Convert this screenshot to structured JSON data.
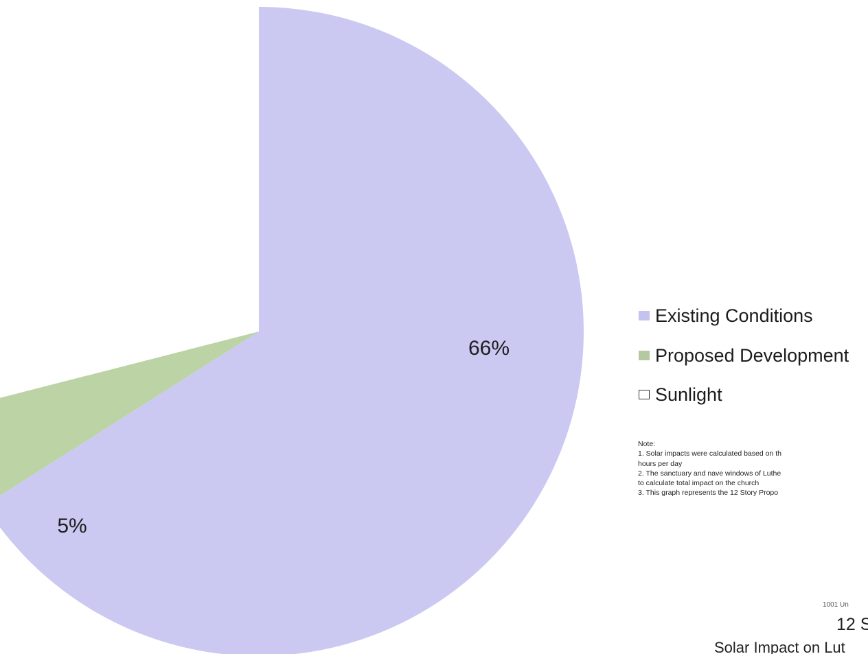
{
  "chart_data": {
    "type": "pie",
    "slices": [
      {
        "name": "Existing Conditions",
        "value": 66,
        "label": "66%",
        "color": "#cbc9f2"
      },
      {
        "name": "Proposed Development",
        "value": 5,
        "label": "5%",
        "color": "#bcd3a6"
      },
      {
        "name": "Sunlight",
        "value": 29,
        "label": "",
        "color": "#ffffff"
      }
    ],
    "legend_position": "right"
  },
  "legend": {
    "items": [
      {
        "label": "Existing Conditions",
        "color": "#c4c3ef"
      },
      {
        "label": "Proposed Development",
        "color": "#b4c9a0"
      },
      {
        "label": "Sunlight",
        "color": "#ffffff"
      }
    ]
  },
  "note": {
    "heading": "Note:",
    "lines": [
      "1.  Solar impacts were calculated based on th",
      "hours per day",
      "2.  The sanctuary and nave windows of Luthe",
      "to calculate total impact on the church",
      "3.  This graph represents the 12 Story Propo"
    ]
  },
  "footer": {
    "address": "1001 Un",
    "title": "12 S",
    "subtitle": "Solar Impact on Lut"
  }
}
